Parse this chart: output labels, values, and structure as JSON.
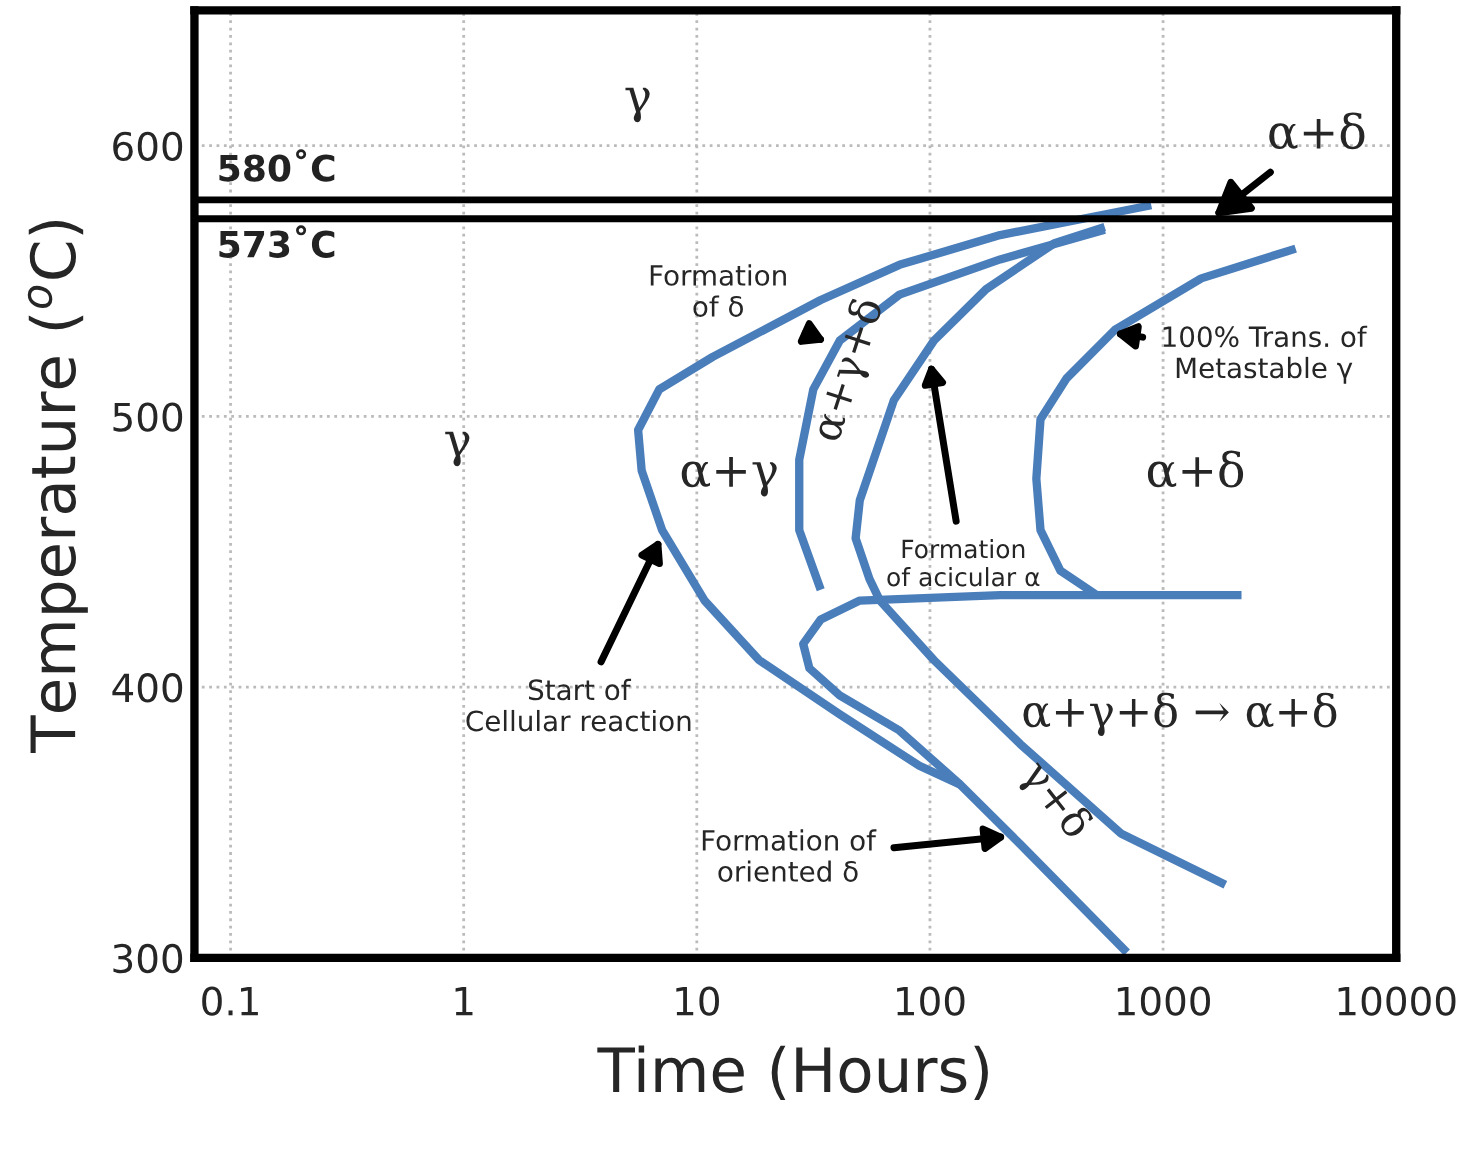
{
  "chart_data": {
    "type": "line",
    "xlabel": "Time (Hours)",
    "ylabel": "Temperature ($^{o}$C)",
    "log": "x",
    "xlim": [
      0.07,
      10000
    ],
    "ylim": [
      300,
      650
    ],
    "xticks": [
      0.1,
      1,
      10,
      100,
      1000,
      10000
    ],
    "yticks": [
      300,
      400,
      500,
      600
    ],
    "grid": true,
    "legend": false,
    "marker": "none",
    "line_style": "solid",
    "series": [
      {
        "color": "#4a7ebb",
        "x": [
          890,
          200,
          74,
          34,
          11.7,
          6.9,
          5.6,
          5.8,
          7.1,
          10.8,
          18.5,
          41,
          90,
          135
        ],
        "values": [
          578,
          567,
          556,
          543,
          522,
          510,
          495,
          480,
          458,
          432,
          410,
          390,
          371,
          364
        ]
      },
      {
        "color": "#4a7ebb",
        "x": [
          562,
          200,
          74,
          41,
          31.6,
          27.5,
          27.5,
          34
        ],
        "values": [
          569,
          558,
          545,
          528,
          510,
          484,
          458,
          436
        ]
      },
      {
        "color": "#4a7ebb",
        "x": [
          2170,
          200,
          50,
          34,
          28.6,
          30.4,
          41,
          74,
          135,
          244,
          700
        ],
        "values": [
          434,
          434,
          432,
          425,
          416,
          407,
          397,
          384,
          364,
          342,
          302
        ]
      },
      {
        "color": "#4a7ebb",
        "x": [
          562,
          342,
          174,
          104,
          70,
          50,
          48,
          55,
          61,
          104,
          244,
          659,
          1850
        ],
        "values": [
          570,
          564,
          547,
          528,
          506,
          469,
          455,
          440,
          432,
          410,
          379,
          346,
          327
        ]
      },
      {
        "color": "#4a7ebb",
        "x": [
          3705,
          1458,
          621,
          385,
          298,
          286,
          298,
          363,
          520
        ],
        "values": [
          562,
          551,
          532,
          514,
          499,
          477,
          458,
          443,
          434
        ]
      }
    ],
    "ref_lines": [
      {
        "axis": "y",
        "value": 580,
        "label": "580˚C",
        "color": "#000000"
      },
      {
        "axis": "y",
        "value": 573,
        "label": "573˚C",
        "color": "#000000"
      }
    ],
    "annotations": [
      "γ",
      "γ",
      "α+γ",
      "α+γ+δ",
      {
        "text": "α+δ",
        "x": 1610,
        "y": 573
      },
      {
        "text": "Formation\nof δ",
        "x": 37,
        "y": 527
      },
      {
        "text": "100% Trans. of\nMetastable γ",
        "x": 597,
        "y": 531
      },
      "α+δ",
      {
        "text": "Formation\nof acicular α",
        "x": 100,
        "y": 521
      },
      {
        "text": "Start of\nCellular reaction",
        "x": 7.1,
        "y": 456
      },
      "α+γ+δ → α+δ",
      "γ+δ",
      {
        "text": "Formation of\noriented δ",
        "x": 221,
        "y": 345
      }
    ]
  }
}
